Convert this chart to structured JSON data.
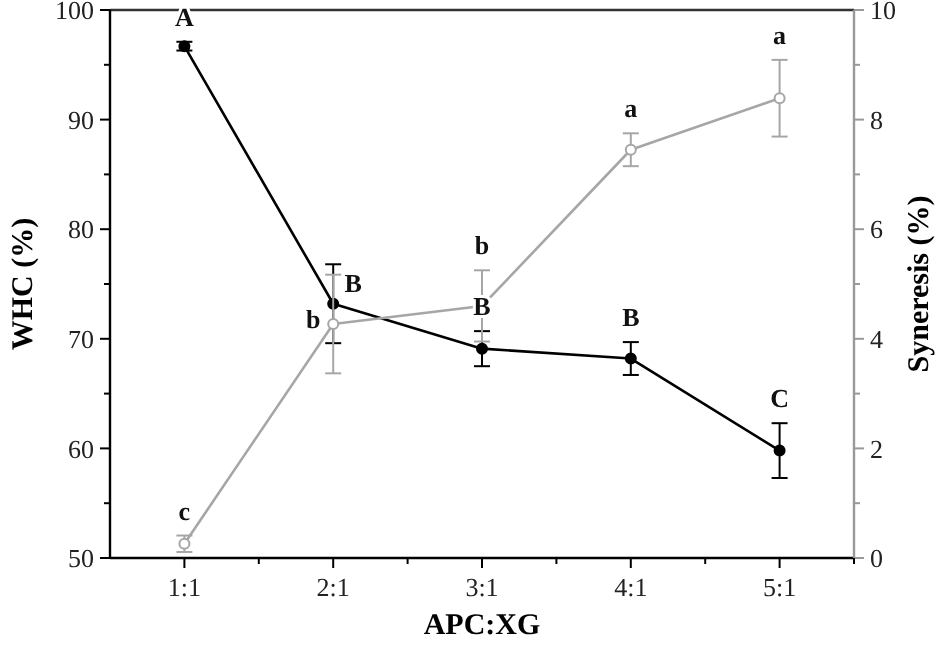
{
  "chart_data": {
    "type": "line",
    "xlabel": "APC:XG",
    "ylabel": "WHC (%)",
    "y2label": "Syneresis (%)",
    "categories": [
      "1:1",
      "2:1",
      "3:1",
      "4:1",
      "5:1"
    ],
    "series": [
      {
        "color": "#000000",
        "values": [
          96.7,
          73.2,
          69.1,
          68.2,
          59.8
        ],
        "errors": [
          0.4,
          3.6,
          1.6,
          1.5,
          2.5
        ],
        "value_labels": [
          "A",
          "B",
          "B",
          "B",
          "C"
        ]
      },
      {
        "color": "#a6a6a6",
        "axis": "y2",
        "values": [
          0.26,
          4.27,
          4.6,
          7.45,
          8.39
        ],
        "errors": [
          0.15,
          0.9,
          0.65,
          0.3,
          0.7
        ],
        "value_labels": [
          "c",
          "b",
          "b",
          "a",
          "a"
        ]
      }
    ],
    "ylim": [
      50,
      100
    ],
    "yticks": [
      50,
      {
        "value": 55,
        "label": null
      },
      60,
      {
        "value": 65,
        "label": null
      },
      70,
      {
        "value": 75,
        "label": null
      },
      80,
      {
        "value": 85,
        "label": null
      },
      90,
      {
        "value": 95,
        "label": null
      },
      100
    ],
    "y2lim": [
      0,
      10
    ],
    "y2ticks": [
      0,
      {
        "value": 1,
        "label": null
      },
      2,
      {
        "value": 3,
        "label": null
      },
      4,
      {
        "value": 5,
        "label": null
      },
      6,
      {
        "value": 7,
        "label": null
      },
      8,
      {
        "value": 9,
        "label": null
      },
      10
    ],
    "marker": "circle",
    "line_style": "solid",
    "grid": false
  }
}
